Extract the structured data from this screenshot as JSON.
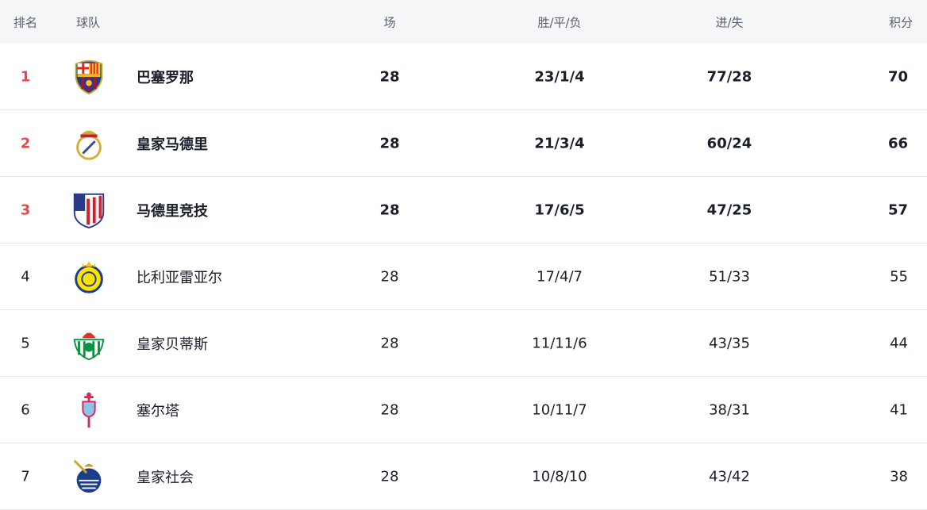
{
  "header": {
    "rank": "排名",
    "team": "球队",
    "played": "场",
    "wdl": "胜/平/负",
    "goals": "进/失",
    "points": "积分"
  },
  "colors": {
    "top_rank": "#e5484f",
    "header_bg": "#f5f6f8"
  },
  "rows": [
    {
      "rank": "1",
      "team": "巴塞罗那",
      "played": "28",
      "wdl": "23/1/4",
      "goals": "77/28",
      "points": "70",
      "crest": "barcelona-crest-icon"
    },
    {
      "rank": "2",
      "team": "皇家马德里",
      "played": "28",
      "wdl": "21/3/4",
      "goals": "60/24",
      "points": "66",
      "crest": "real-madrid-crest-icon"
    },
    {
      "rank": "3",
      "team": "马德里竞技",
      "played": "28",
      "wdl": "17/6/5",
      "goals": "47/25",
      "points": "57",
      "crest": "atletico-crest-icon"
    },
    {
      "rank": "4",
      "team": "比利亚雷亚尔",
      "played": "28",
      "wdl": "17/4/7",
      "goals": "51/33",
      "points": "55",
      "crest": "villarreal-crest-icon"
    },
    {
      "rank": "5",
      "team": "皇家贝蒂斯",
      "played": "28",
      "wdl": "11/11/6",
      "goals": "43/35",
      "points": "44",
      "crest": "betis-crest-icon"
    },
    {
      "rank": "6",
      "team": "塞尔塔",
      "played": "28",
      "wdl": "10/11/7",
      "goals": "38/31",
      "points": "41",
      "crest": "celta-crest-icon"
    },
    {
      "rank": "7",
      "team": "皇家社会",
      "played": "28",
      "wdl": "10/8/10",
      "goals": "43/42",
      "points": "38",
      "crest": "real-sociedad-crest-icon"
    }
  ]
}
